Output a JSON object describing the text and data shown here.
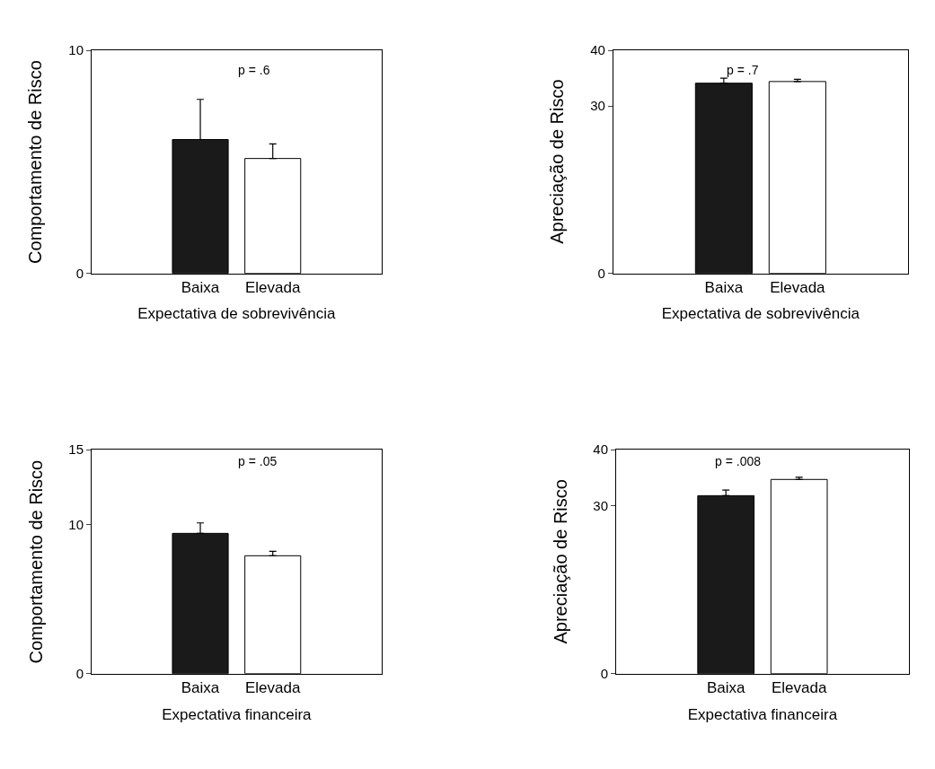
{
  "chart_data": [
    {
      "type": "bar",
      "categories": [
        "Baixa",
        "Elevada"
      ],
      "values": [
        6.0,
        5.15
      ],
      "colors": [
        "#1a1a1a",
        "#ffffff"
      ],
      "errors": [
        [
          6.0,
          7.8
        ],
        [
          5.15,
          5.8
        ]
      ],
      "ylim": [
        0,
        10
      ],
      "yticks": [
        0,
        10
      ],
      "ylabel": "Comportamento de Risco",
      "xlabel": "Expectativa de sobrevivência",
      "annotations": [
        "p = .6"
      ]
    },
    {
      "type": "bar",
      "categories": [
        "Baixa",
        "Elevada"
      ],
      "values": [
        34.1,
        34.4
      ],
      "colors": [
        "#1a1a1a",
        "#ffffff"
      ],
      "errors": [
        [
          34.1,
          35.0
        ],
        [
          34.4,
          34.8
        ]
      ],
      "ylim": [
        0,
        40
      ],
      "yticks": [
        0,
        30,
        40
      ],
      "ylabel": "Apreciação de Risco",
      "xlabel": "Expectativa de sobrevivência",
      "annotations": [
        "p = .7"
      ]
    },
    {
      "type": "bar",
      "categories": [
        "Baixa",
        "Elevada"
      ],
      "values": [
        9.4,
        7.9
      ],
      "colors": [
        "#1a1a1a",
        "#ffffff"
      ],
      "errors": [
        [
          9.4,
          10.1
        ],
        [
          7.9,
          8.2
        ]
      ],
      "ylim": [
        0,
        15
      ],
      "yticks": [
        0,
        10,
        15
      ],
      "ylabel": "Comportamento de Risco",
      "xlabel": "Expectativa financeira",
      "annotations": [
        "p = .05"
      ]
    },
    {
      "type": "bar",
      "categories": [
        "Baixa",
        "Elevada"
      ],
      "values": [
        31.8,
        34.7
      ],
      "colors": [
        "#1a1a1a",
        "#ffffff"
      ],
      "errors": [
        [
          31.8,
          32.8
        ],
        [
          34.7,
          35.1
        ]
      ],
      "ylim": [
        0,
        40
      ],
      "yticks": [
        0,
        30,
        40
      ],
      "ylabel": "Apreciação de Risco",
      "xlabel": "Expectativa financeira",
      "annotations": [
        "p = .008"
      ]
    }
  ]
}
